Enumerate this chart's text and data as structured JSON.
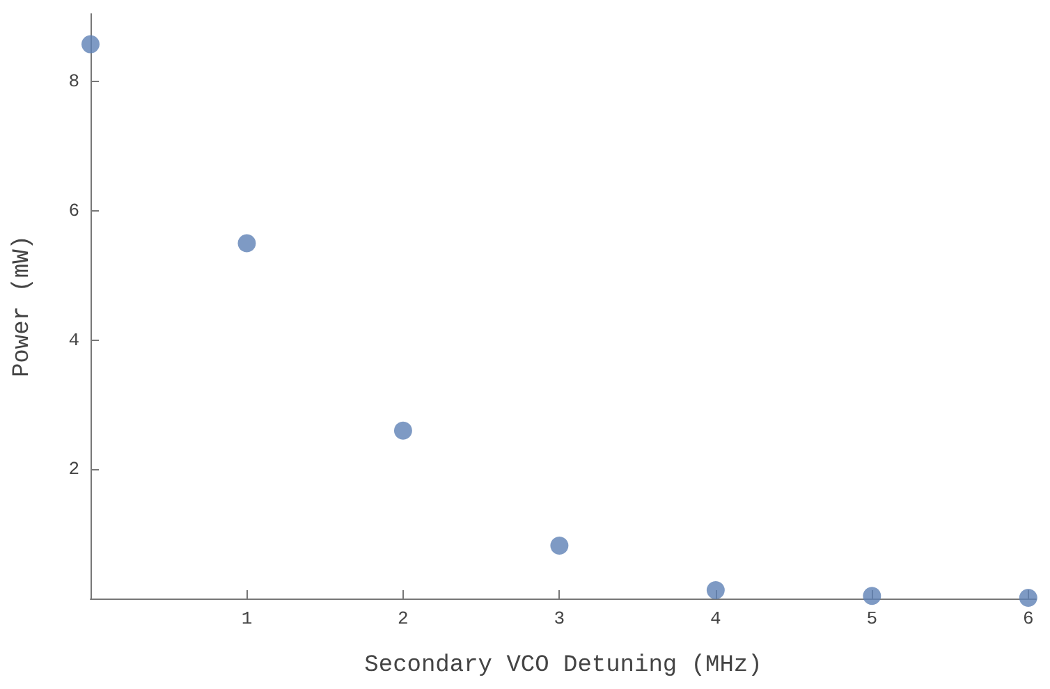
{
  "chart_data": {
    "type": "scatter",
    "xlabel": "Secondary VCO Detuning (MHz)",
    "ylabel": "Power (mW)",
    "x": [
      0,
      1,
      2,
      3,
      4,
      5,
      6
    ],
    "values": [
      8.58,
      5.5,
      2.6,
      0.82,
      0.13,
      0.04,
      0.01
    ],
    "color": "#5e81b5",
    "marker": "circle",
    "grid": false,
    "xlim": [
      0,
      6.05
    ],
    "xticks": [
      {
        "value": 0,
        "label": null
      },
      1,
      2,
      3,
      4,
      5,
      6
    ],
    "ylim": [
      0,
      9.05
    ],
    "yticks": [
      {
        "value": 0,
        "label": null
      },
      2,
      4,
      6,
      8
    ]
  }
}
